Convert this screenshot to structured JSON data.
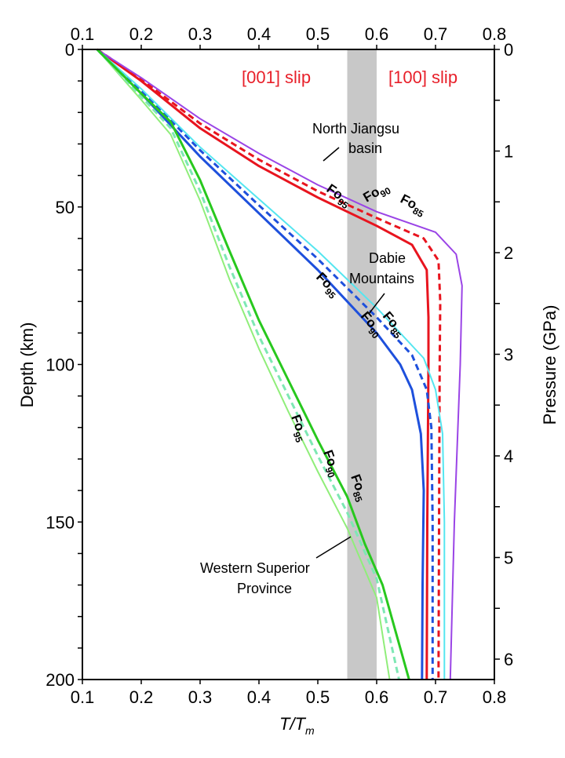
{
  "chart_data": {
    "type": "line",
    "title": "",
    "xlabel": "T/T_m",
    "xlabel_main": "T/T",
    "xlabel_sub": "m",
    "ylabel": "Depth (km)",
    "ylabel_right": "Pressure (GPa)",
    "xlim": [
      0.1,
      0.8
    ],
    "ylim": [
      200,
      0
    ],
    "y_right_lim": [
      0,
      6.2
    ],
    "x_ticks": [
      "0.1",
      "0.2",
      "0.3",
      "0.4",
      "0.5",
      "0.6",
      "0.7",
      "0.8"
    ],
    "y_ticks": [
      "0",
      "50",
      "100",
      "150",
      "200"
    ],
    "y_right_ticks": [
      "0",
      "1",
      "2",
      "3",
      "4",
      "5",
      "6"
    ],
    "shaded_band": {
      "x_from": 0.55,
      "x_to": 0.6,
      "color": "#c8c8c8"
    },
    "annotations": {
      "slip_001": "[001] slip",
      "slip_100": "[100] slip",
      "north_jiangsu_1": "North Jiangsu",
      "north_jiangsu_2": "basin",
      "dabie_1": "Dabie",
      "dabie_2": "Mountains",
      "western_1": "Western Superior",
      "western_2": "Province",
      "fo_prefix": "Fo",
      "fo95": "95",
      "fo90": "90",
      "fo85": "85"
    },
    "slip_color": "#e8202a",
    "series": [
      {
        "name": "North Jiangsu basin Fo95",
        "color": "#e8141e",
        "dash": false,
        "width": 3,
        "points": [
          [
            0.125,
            0
          ],
          [
            0.2,
            10
          ],
          [
            0.3,
            25
          ],
          [
            0.4,
            37
          ],
          [
            0.5,
            47
          ],
          [
            0.6,
            56
          ],
          [
            0.66,
            62
          ],
          [
            0.685,
            70
          ],
          [
            0.688,
            85
          ],
          [
            0.688,
            100
          ],
          [
            0.686,
            150
          ],
          [
            0.685,
            200
          ]
        ]
      },
      {
        "name": "North Jiangsu basin Fo90",
        "color": "#e8141e",
        "dash": true,
        "width": 3,
        "points": [
          [
            0.125,
            0
          ],
          [
            0.2,
            9.5
          ],
          [
            0.3,
            23.5
          ],
          [
            0.4,
            35
          ],
          [
            0.5,
            45
          ],
          [
            0.6,
            53.5
          ],
          [
            0.68,
            60
          ],
          [
            0.705,
            67
          ],
          [
            0.708,
            80
          ],
          [
            0.707,
            100
          ],
          [
            0.706,
            150
          ],
          [
            0.705,
            200
          ]
        ]
      },
      {
        "name": "North Jiangsu basin Fo85",
        "color": "#9a44e6",
        "dash": false,
        "width": 2,
        "points": [
          [
            0.125,
            0
          ],
          [
            0.2,
            9
          ],
          [
            0.3,
            22
          ],
          [
            0.4,
            33
          ],
          [
            0.5,
            43
          ],
          [
            0.6,
            51.5
          ],
          [
            0.7,
            58
          ],
          [
            0.735,
            65
          ],
          [
            0.745,
            75
          ],
          [
            0.742,
            100
          ],
          [
            0.732,
            150
          ],
          [
            0.725,
            200
          ]
        ]
      },
      {
        "name": "Dabie Mountains Fo95",
        "color": "#1e50dc",
        "dash": false,
        "width": 3,
        "points": [
          [
            0.125,
            0
          ],
          [
            0.2,
            14
          ],
          [
            0.3,
            34
          ],
          [
            0.4,
            52
          ],
          [
            0.5,
            70
          ],
          [
            0.6,
            90
          ],
          [
            0.64,
            100
          ],
          [
            0.66,
            108
          ],
          [
            0.675,
            122
          ],
          [
            0.68,
            140
          ],
          [
            0.678,
            170
          ],
          [
            0.677,
            200
          ]
        ]
      },
      {
        "name": "Dabie Mountains Fo90",
        "color": "#1e50dc",
        "dash": true,
        "width": 3,
        "points": [
          [
            0.125,
            0
          ],
          [
            0.2,
            13
          ],
          [
            0.3,
            32
          ],
          [
            0.4,
            49.5
          ],
          [
            0.5,
            66.5
          ],
          [
            0.6,
            85
          ],
          [
            0.66,
            97
          ],
          [
            0.685,
            108
          ],
          [
            0.693,
            120
          ],
          [
            0.695,
            150
          ],
          [
            0.695,
            200
          ]
        ]
      },
      {
        "name": "Dabie Mountains Fo85",
        "color": "#55e6f0",
        "dash": false,
        "width": 2,
        "points": [
          [
            0.125,
            0
          ],
          [
            0.2,
            12.5
          ],
          [
            0.3,
            31
          ],
          [
            0.4,
            47.5
          ],
          [
            0.5,
            64
          ],
          [
            0.6,
            82
          ],
          [
            0.68,
            98
          ],
          [
            0.7,
            108
          ],
          [
            0.712,
            122
          ],
          [
            0.715,
            150
          ],
          [
            0.715,
            200
          ]
        ]
      },
      {
        "name": "Western Superior Province Fo95",
        "color": "#90ee7a",
        "dash": false,
        "width": 2,
        "points": [
          [
            0.125,
            0
          ],
          [
            0.2,
            16
          ],
          [
            0.25,
            27
          ],
          [
            0.3,
            48
          ],
          [
            0.35,
            73
          ],
          [
            0.4,
            95
          ],
          [
            0.45,
            115
          ],
          [
            0.5,
            134
          ],
          [
            0.55,
            152
          ],
          [
            0.6,
            174
          ],
          [
            0.622,
            200
          ]
        ]
      },
      {
        "name": "Western Superior Province Fo90",
        "color": "#7ee8b4",
        "dash": true,
        "width": 3,
        "points": [
          [
            0.125,
            0
          ],
          [
            0.2,
            15
          ],
          [
            0.25,
            25
          ],
          [
            0.3,
            45
          ],
          [
            0.35,
            69
          ],
          [
            0.4,
            91
          ],
          [
            0.45,
            110
          ],
          [
            0.5,
            129
          ],
          [
            0.55,
            147
          ],
          [
            0.6,
            168
          ],
          [
            0.638,
            200
          ]
        ]
      },
      {
        "name": "Western Superior Province Fo85",
        "color": "#28c81e",
        "dash": false,
        "width": 3,
        "points": [
          [
            0.125,
            0
          ],
          [
            0.2,
            14
          ],
          [
            0.25,
            23
          ],
          [
            0.3,
            41.5
          ],
          [
            0.35,
            64
          ],
          [
            0.4,
            86
          ],
          [
            0.45,
            105
          ],
          [
            0.5,
            124
          ],
          [
            0.55,
            142
          ],
          [
            0.58,
            157
          ],
          [
            0.61,
            170
          ],
          [
            0.655,
            200
          ]
        ]
      }
    ]
  }
}
